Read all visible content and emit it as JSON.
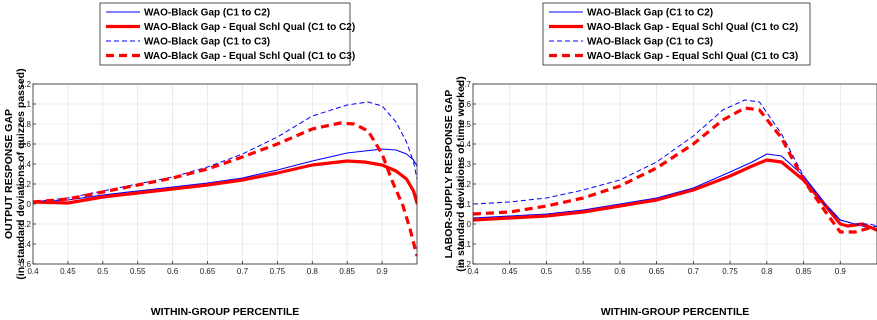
{
  "chart_data": [
    {
      "type": "line",
      "xlabel": "WITHIN-GROUP PERCENTILE",
      "ylabel": "OUTPUT RESPONSE GAP",
      "ylabel2": "(in standard deviations of quizzes passed)",
      "xlim": [
        0.4,
        0.95
      ],
      "ylim": [
        -0.6,
        1.2
      ],
      "xticks": [
        0.4,
        0.45,
        0.5,
        0.55,
        0.6,
        0.65,
        0.7,
        0.75,
        0.8,
        0.85,
        0.9
      ],
      "xtick_labels": [
        "0.4",
        "0.45",
        "0.5",
        "0.55",
        "0.6",
        "0.65",
        "0.7",
        "0.75",
        "0.8",
        "0.85",
        "0.9"
      ],
      "yticks": [
        -0.6,
        -0.4,
        -0.2,
        0,
        0.2,
        0.4,
        0.6,
        0.8,
        1,
        1.2
      ],
      "ytick_labels": [
        "-0.6",
        "-0.4",
        "-0.2",
        "0",
        "0.2",
        "0.4",
        "0.6",
        "0.8",
        "1",
        "1.2"
      ],
      "grid": true,
      "legend_position": "top-center",
      "series": [
        {
          "name": "WAO-Black Gap (C1 to C2)",
          "color": "#0000ff",
          "style": "solid-thin",
          "x": [
            0.4,
            0.45,
            0.5,
            0.55,
            0.6,
            0.65,
            0.7,
            0.75,
            0.8,
            0.85,
            0.875,
            0.9,
            0.92,
            0.935,
            0.945,
            0.95
          ],
          "y": [
            0.02,
            0.04,
            0.09,
            0.13,
            0.17,
            0.21,
            0.26,
            0.34,
            0.43,
            0.51,
            0.53,
            0.55,
            0.54,
            0.5,
            0.44,
            0.38
          ]
        },
        {
          "name": "WAO-Black Gap - Equal Schl Qual (C1 to C2)",
          "color": "#ff0000",
          "style": "solid-thick",
          "x": [
            0.4,
            0.45,
            0.5,
            0.55,
            0.6,
            0.65,
            0.7,
            0.75,
            0.8,
            0.85,
            0.875,
            0.9,
            0.92,
            0.935,
            0.945,
            0.95
          ],
          "y": [
            0.02,
            0.01,
            0.07,
            0.11,
            0.15,
            0.19,
            0.24,
            0.31,
            0.39,
            0.43,
            0.42,
            0.39,
            0.33,
            0.25,
            0.13,
            0.01
          ]
        },
        {
          "name": "WAO-Black Gap (C1 to C3)",
          "color": "#0000ff",
          "style": "dashed-thin",
          "x": [
            0.4,
            0.45,
            0.5,
            0.55,
            0.6,
            0.65,
            0.7,
            0.75,
            0.8,
            0.85,
            0.88,
            0.9,
            0.92,
            0.935,
            0.945,
            0.95
          ],
          "y": [
            0.02,
            0.06,
            0.13,
            0.2,
            0.27,
            0.37,
            0.5,
            0.67,
            0.88,
            0.99,
            1.02,
            0.98,
            0.82,
            0.62,
            0.42,
            0.25
          ]
        },
        {
          "name": "WAO-Black Gap - Equal Schl Qual (C1 to C3)",
          "color": "#ff0000",
          "style": "dashed-thick",
          "x": [
            0.4,
            0.45,
            0.5,
            0.55,
            0.6,
            0.65,
            0.7,
            0.75,
            0.8,
            0.84,
            0.86,
            0.88,
            0.9,
            0.915,
            0.93,
            0.94,
            0.95
          ],
          "y": [
            0.02,
            0.05,
            0.12,
            0.19,
            0.26,
            0.35,
            0.47,
            0.6,
            0.75,
            0.81,
            0.8,
            0.73,
            0.5,
            0.22,
            -0.02,
            -0.25,
            -0.52
          ]
        }
      ]
    },
    {
      "type": "line",
      "xlabel": "WITHIN-GROUP PERCENTILE",
      "ylabel": "LABOR-SUPPLY RESPONSE GAP",
      "ylabel2": "(in standard deviations of time worked)",
      "xlim": [
        0.4,
        0.95
      ],
      "ylim": [
        -0.2,
        0.7
      ],
      "xticks": [
        0.4,
        0.45,
        0.5,
        0.55,
        0.6,
        0.65,
        0.7,
        0.75,
        0.8,
        0.85,
        0.9
      ],
      "xtick_labels": [
        "0.4",
        "0.45",
        "0.5",
        "0.55",
        "0.6",
        "0.65",
        "0.7",
        "0.75",
        "0.8",
        "0.85",
        "0.9"
      ],
      "yticks": [
        -0.2,
        -0.1,
        0,
        0.1,
        0.2,
        0.3,
        0.4,
        0.5,
        0.6,
        0.7
      ],
      "ytick_labels": [
        "-0.2",
        "-0.1",
        "0",
        "0.1",
        "0.2",
        "0.3",
        "0.4",
        "0.5",
        "0.6",
        "0.7"
      ],
      "grid": true,
      "legend_position": "top-center",
      "series": [
        {
          "name": "WAO-Black Gap (C1 to C2)",
          "color": "#0000ff",
          "style": "solid-thin",
          "x": [
            0.4,
            0.45,
            0.5,
            0.55,
            0.6,
            0.65,
            0.7,
            0.75,
            0.78,
            0.8,
            0.82,
            0.85,
            0.88,
            0.9,
            0.92,
            0.94,
            0.95
          ],
          "y": [
            0.03,
            0.04,
            0.05,
            0.07,
            0.1,
            0.13,
            0.18,
            0.26,
            0.31,
            0.35,
            0.34,
            0.24,
            0.1,
            0.02,
            0.0,
            -0.02,
            -0.01
          ]
        },
        {
          "name": "WAO-Black Gap - Equal Schl Qual (C1 to C2)",
          "color": "#ff0000",
          "style": "solid-thick",
          "x": [
            0.4,
            0.45,
            0.5,
            0.55,
            0.6,
            0.65,
            0.7,
            0.75,
            0.78,
            0.8,
            0.82,
            0.85,
            0.88,
            0.9,
            0.91,
            0.93,
            0.95
          ],
          "y": [
            0.02,
            0.03,
            0.04,
            0.06,
            0.09,
            0.12,
            0.17,
            0.24,
            0.29,
            0.32,
            0.31,
            0.22,
            0.09,
            0.0,
            -0.01,
            0.0,
            -0.03
          ]
        },
        {
          "name": "WAO-Black Gap (C1 to C3)",
          "color": "#0000ff",
          "style": "dashed-thin",
          "x": [
            0.4,
            0.45,
            0.5,
            0.55,
            0.6,
            0.65,
            0.7,
            0.74,
            0.77,
            0.79,
            0.82,
            0.85,
            0.88,
            0.9,
            0.92,
            0.94,
            0.95
          ],
          "y": [
            0.1,
            0.11,
            0.13,
            0.17,
            0.22,
            0.31,
            0.44,
            0.57,
            0.62,
            0.61,
            0.45,
            0.24,
            0.09,
            0.02,
            0.0,
            0.0,
            -0.01
          ]
        },
        {
          "name": "WAO-Black Gap - Equal Schl Qual (C1 to C3)",
          "color": "#ff0000",
          "style": "dashed-thick",
          "x": [
            0.4,
            0.45,
            0.5,
            0.55,
            0.6,
            0.65,
            0.7,
            0.74,
            0.77,
            0.79,
            0.82,
            0.85,
            0.88,
            0.9,
            0.92,
            0.94,
            0.95
          ],
          "y": [
            0.05,
            0.06,
            0.09,
            0.13,
            0.19,
            0.28,
            0.4,
            0.52,
            0.58,
            0.57,
            0.43,
            0.22,
            0.06,
            -0.04,
            -0.04,
            -0.02,
            -0.03
          ]
        }
      ]
    }
  ]
}
